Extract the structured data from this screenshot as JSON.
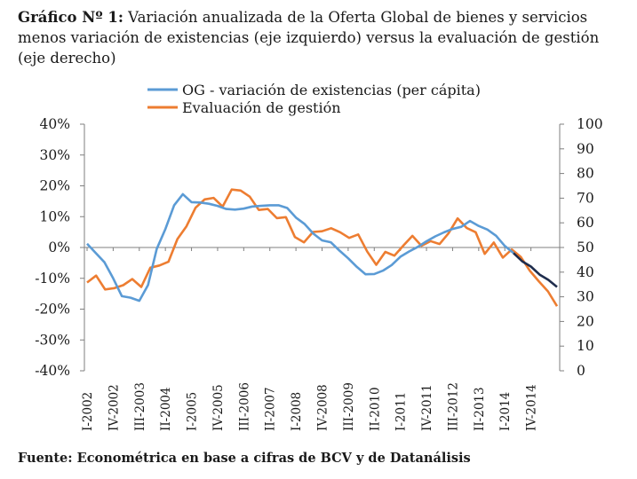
{
  "title_prefix": "Gráfico Nº 1:",
  "title_text": "Variación anualizada de la Oferta Global de bienes y servicios menos variación de existencias (eje izquierdo) versus la evaluación de gestión (eje derecho)",
  "footer": "Fuente: Econométrica en base a cifras de BCV y  de Datanálisis",
  "chart_data": {
    "type": "line",
    "x_tick_labels": [
      "I-2002",
      "IV-2002",
      "III-2003",
      "II-2004",
      "I-2005",
      "IV-2005",
      "III-2006",
      "II-2007",
      "I-2008",
      "IV-2008",
      "III-2009",
      "II-2010",
      "I-2011",
      "IV-2011",
      "III-2012",
      "II-2013",
      "I-2014",
      "IV-2014"
    ],
    "y_left": {
      "min": -40,
      "max": 40,
      "step": 10,
      "tick_labels": [
        "40%",
        "30%",
        "20%",
        "10%",
        "0%",
        "-10%",
        "-20%",
        "-30%",
        "-40%"
      ]
    },
    "y_right": {
      "min": 0,
      "max": 100,
      "step": 10,
      "tick_labels": [
        "100",
        "90",
        "80",
        "70",
        "60",
        "50",
        "40",
        "30",
        "20",
        "10",
        "0"
      ]
    },
    "legend_position": "top",
    "series": [
      {
        "name": "OG - variación de existencias (per cápita)",
        "axis": "left",
        "color": "#5b9bd5",
        "values": [
          1.2,
          -1.8,
          -4.8,
          -10.0,
          -15.8,
          -16.3,
          -17.3,
          -12.2,
          -0.5,
          6.0,
          13.7,
          17.3,
          14.7,
          14.6,
          14.2,
          13.5,
          12.5,
          12.3,
          12.6,
          13.3,
          13.5,
          13.7,
          13.7,
          12.8,
          9.7,
          7.6,
          4.5,
          2.3,
          1.7,
          -1.0,
          -3.5,
          -6.3,
          -8.7,
          -8.6,
          -7.5,
          -5.7,
          -3.0,
          -1.3,
          0.2,
          2.0,
          3.6,
          4.9,
          6.0,
          6.7,
          8.6,
          7.0,
          5.8,
          3.8,
          0.5,
          -1.8,
          -4.5,
          -6.2,
          -8.8,
          -10.5,
          -12.8
        ]
      },
      {
        "name": "Evaluación de gestión",
        "axis": "right",
        "color": "#ed7d31",
        "values": [
          35.8,
          38.6,
          33.0,
          33.5,
          34.7,
          37.2,
          34.0,
          41.8,
          42.7,
          44.2,
          53.4,
          58.6,
          66.1,
          69.5,
          70.1,
          66.6,
          73.5,
          73.1,
          70.6,
          65.2,
          65.6,
          61.9,
          62.3,
          54.2,
          52.1,
          56.3,
          56.6,
          57.8,
          56.2,
          53.9,
          55.3,
          48.3,
          43.0,
          48.2,
          46.7,
          50.8,
          54.7,
          50.7,
          52.6,
          51.4,
          55.8,
          61.8,
          57.9,
          56.2,
          47.4,
          52.0,
          45.9,
          49.2,
          46.1,
          40.5,
          36.2,
          32.2,
          26.2
        ]
      }
    ],
    "shading": {
      "color": "#1f2d4d",
      "note": "dark segment at end of the blue line"
    }
  }
}
